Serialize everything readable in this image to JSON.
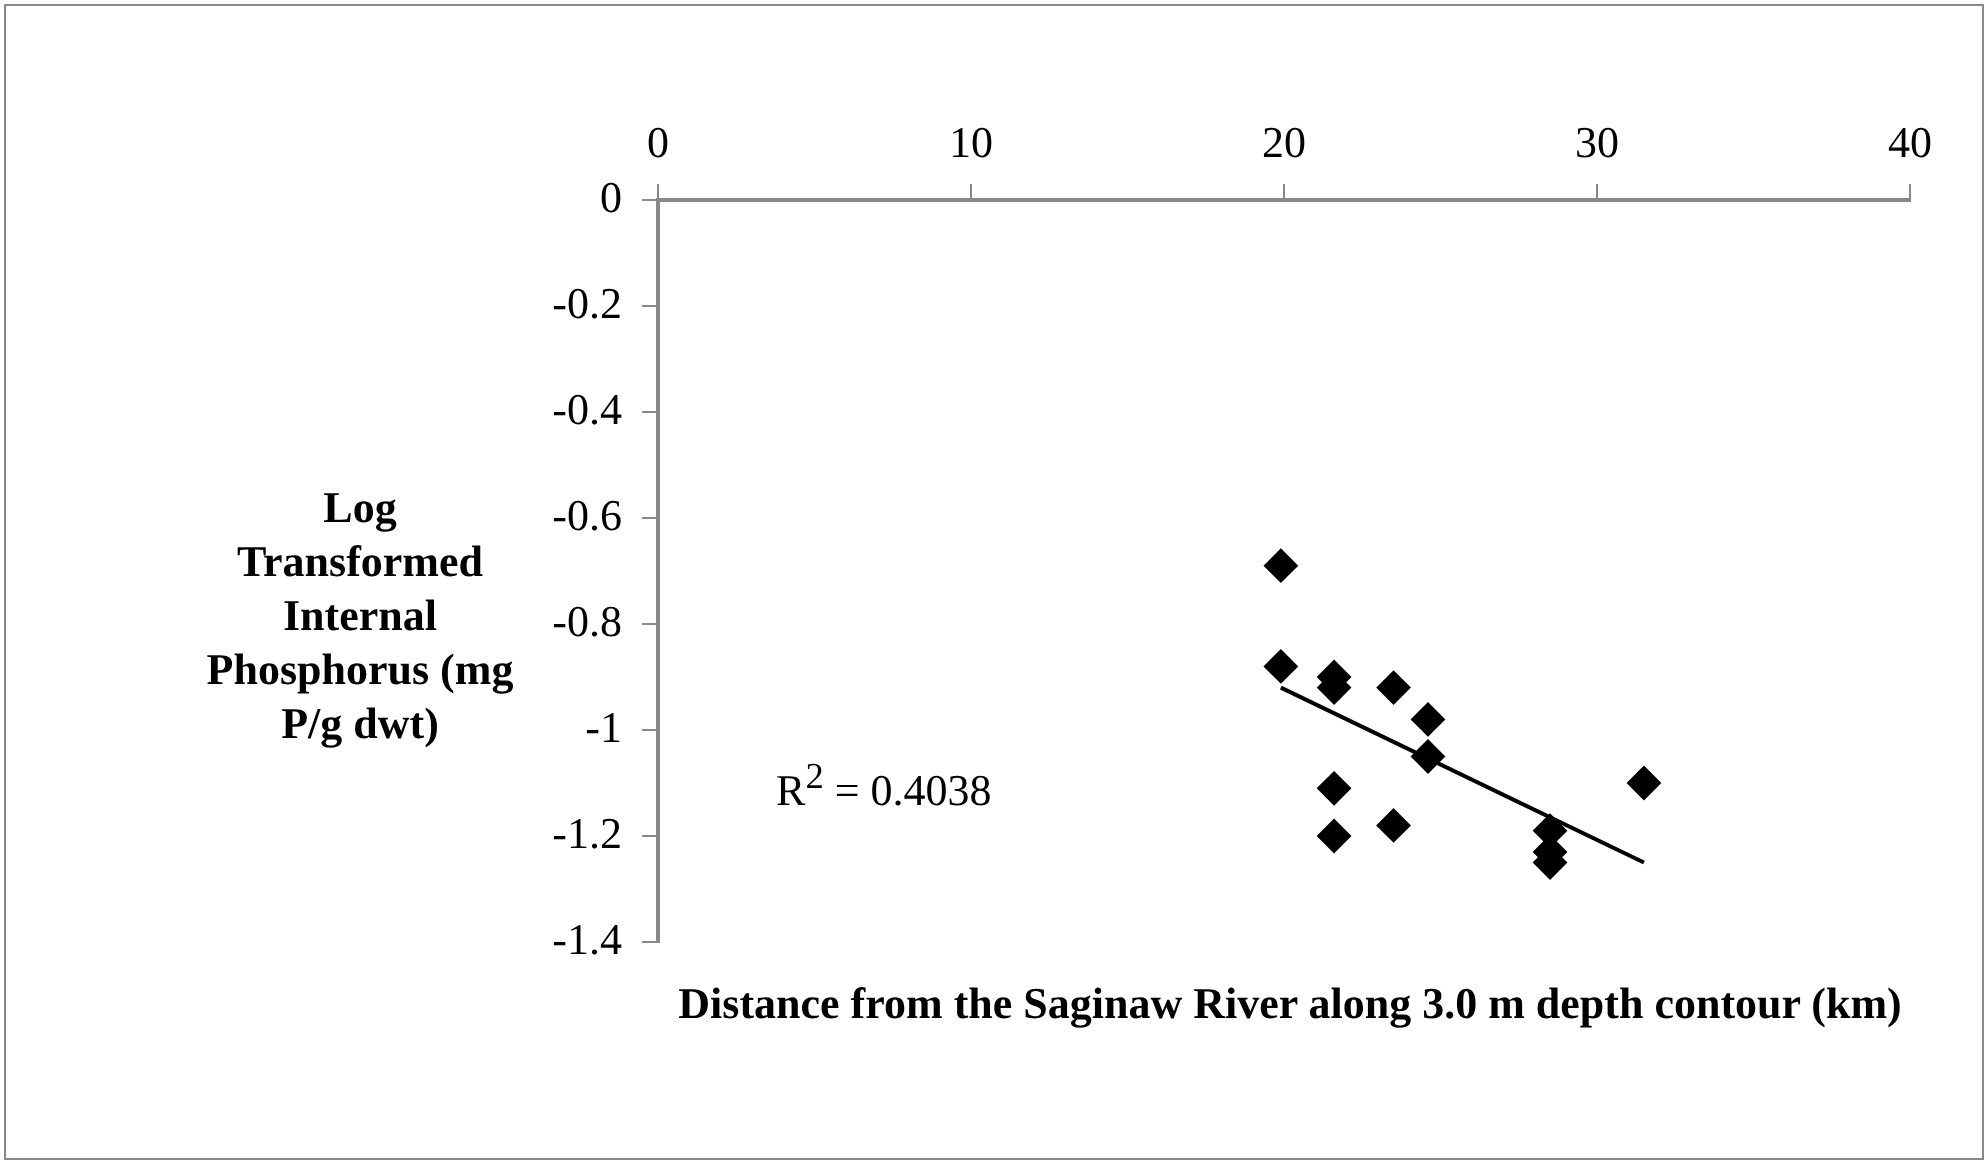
{
  "chart_data": {
    "type": "scatter",
    "xlabel": "Distance from the Saginaw River along 3.0 m depth contour (km)",
    "ylabel": "Log Transformed Internal Phosphorus (mg P/g dwt)",
    "annotations": [
      "R$^{2}$ = 0.4038"
    ],
    "series": [
      {
        "color": "#000000",
        "x": [
          19.9,
          19.9,
          21.6,
          21.6,
          23.5,
          24.6,
          24.6,
          21.6,
          23.5,
          21.6,
          28.5,
          28.5,
          28.5,
          31.5
        ],
        "values": [
          -0.69,
          -0.88,
          -0.9,
          -0.92,
          -0.92,
          -0.98,
          -1.05,
          -1.11,
          -1.18,
          -1.2,
          -1.19,
          -1.23,
          -1.25,
          -1.1
        ]
      },
      {
        "type": "line",
        "color": "#000000",
        "marker": "none",
        "x": [
          19.9,
          31.5
        ],
        "values": [
          -0.92,
          -1.25
        ]
      }
    ],
    "xlim": [
      0,
      40
    ],
    "xticks": [
      0,
      10,
      20,
      30,
      40
    ],
    "ylim": [
      -1.4,
      0
    ],
    "yticks": [
      0,
      -0.2,
      -0.4,
      -0.6,
      -0.8,
      -1,
      -1.2,
      -1.4
    ],
    "grid": false,
    "legend": false,
    "marker": "diamond"
  }
}
